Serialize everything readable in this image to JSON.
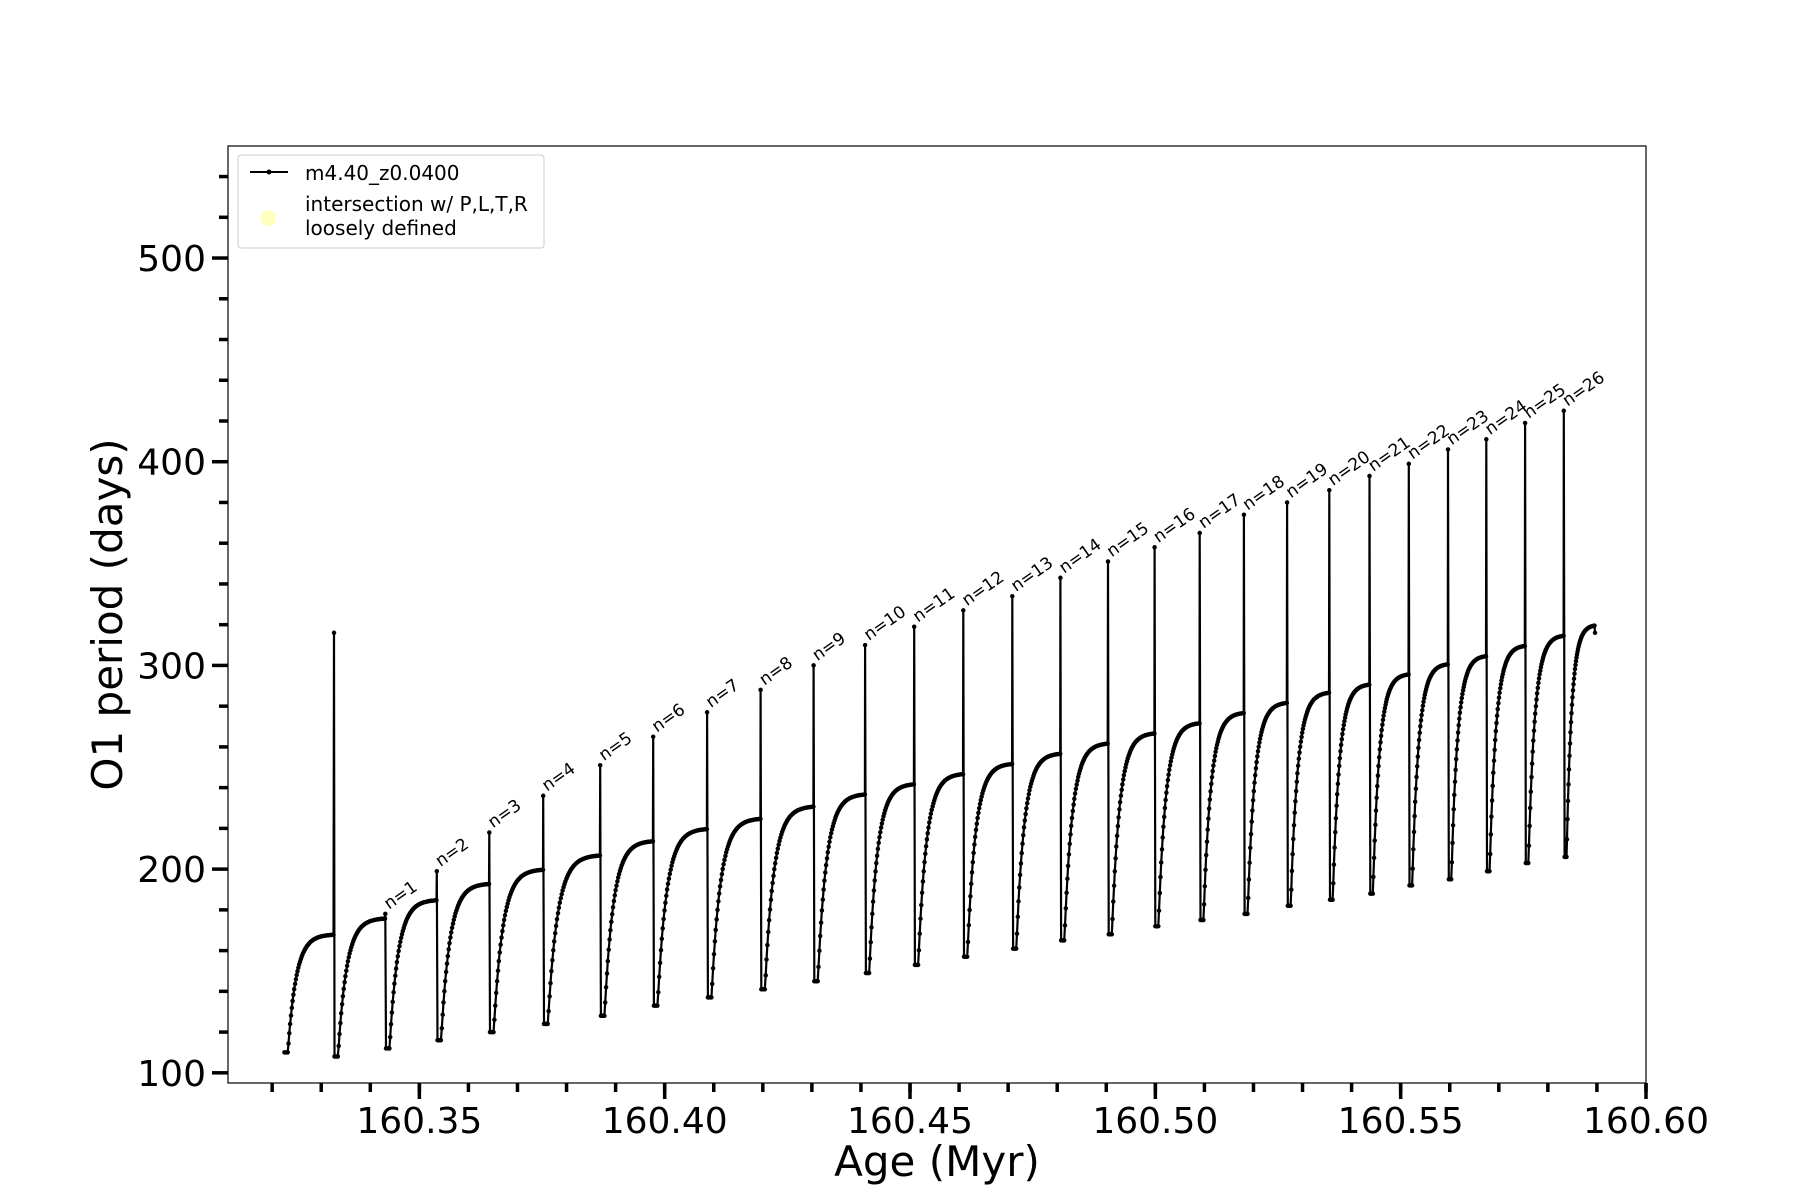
{
  "chart_data": {
    "type": "line",
    "title": "",
    "xlabel": "Age (Myr)",
    "ylabel": "O1 period (days)",
    "xlim": [
      160.311,
      160.6
    ],
    "ylim": [
      95,
      555
    ],
    "x_ticks": [
      160.35,
      160.4,
      160.45,
      160.5,
      160.55,
      160.6
    ],
    "x_tick_labels": [
      "160.35",
      "160.40",
      "160.45",
      "160.50",
      "160.55",
      "160.60"
    ],
    "y_ticks": [
      100,
      200,
      300,
      400,
      500
    ],
    "y_tick_labels": [
      "100",
      "200",
      "300",
      "400",
      "500"
    ],
    "grid": false,
    "legend": {
      "placement": "upper-left",
      "entries": [
        {
          "label": "m4.40_z0.0400",
          "color": "#000000",
          "marker": "line-with-dots"
        },
        {
          "label_lines": [
            "intersection w/ P,L,T,R",
            "loosely defined"
          ],
          "color": "#ffffc0",
          "marker": "circle"
        }
      ]
    },
    "series": [
      {
        "name": "m4.40_z0.0400",
        "color": "#000000",
        "cycles": [
          {
            "start": 160.3225,
            "min": 110,
            "end": 160.3325,
            "plateau": 168,
            "spike": null
          },
          {
            "start": 160.3327,
            "min": 108,
            "end": 160.343,
            "plateau": 176,
            "spike": 178
          },
          {
            "start": 160.3432,
            "min": 112,
            "end": 160.3535,
            "plateau": 185,
            "spike": 199
          },
          {
            "start": 160.3537,
            "min": 116,
            "end": 160.3642,
            "plateau": 193,
            "spike": 218
          },
          {
            "start": 160.3644,
            "min": 120,
            "end": 160.3752,
            "plateau": 200,
            "spike": 236
          },
          {
            "start": 160.3754,
            "min": 124,
            "end": 160.3868,
            "plateau": 207,
            "spike": 251
          },
          {
            "start": 160.387,
            "min": 128,
            "end": 160.3976,
            "plateau": 214,
            "spike": 265
          },
          {
            "start": 160.3978,
            "min": 133,
            "end": 160.4086,
            "plateau": 220,
            "spike": 277
          },
          {
            "start": 160.4088,
            "min": 137,
            "end": 160.4195,
            "plateau": 225,
            "spike": 288
          },
          {
            "start": 160.4197,
            "min": 141,
            "end": 160.4303,
            "plateau": 231,
            "spike": 300
          },
          {
            "start": 160.4305,
            "min": 145,
            "end": 160.4408,
            "plateau": 237,
            "spike": 310
          },
          {
            "start": 160.441,
            "min": 149,
            "end": 160.4508,
            "plateau": 242,
            "spike": 319
          },
          {
            "start": 160.451,
            "min": 153,
            "end": 160.4608,
            "plateau": 247,
            "spike": 327
          },
          {
            "start": 160.461,
            "min": 157,
            "end": 160.4708,
            "plateau": 252,
            "spike": 334
          },
          {
            "start": 160.471,
            "min": 161,
            "end": 160.4806,
            "plateau": 257,
            "spike": 343
          },
          {
            "start": 160.4808,
            "min": 165,
            "end": 160.4903,
            "plateau": 262,
            "spike": 351
          },
          {
            "start": 160.4905,
            "min": 168,
            "end": 160.4998,
            "plateau": 267,
            "spike": 358
          },
          {
            "start": 160.5,
            "min": 172,
            "end": 160.509,
            "plateau": 272,
            "spike": 365
          },
          {
            "start": 160.5092,
            "min": 175,
            "end": 160.518,
            "plateau": 277,
            "spike": 374
          },
          {
            "start": 160.5182,
            "min": 178,
            "end": 160.5268,
            "plateau": 282,
            "spike": 380
          },
          {
            "start": 160.527,
            "min": 182,
            "end": 160.5354,
            "plateau": 287,
            "spike": 386
          },
          {
            "start": 160.5356,
            "min": 185,
            "end": 160.5436,
            "plateau": 291,
            "spike": 393
          },
          {
            "start": 160.5438,
            "min": 188,
            "end": 160.5516,
            "plateau": 296,
            "spike": 399
          },
          {
            "start": 160.5518,
            "min": 192,
            "end": 160.5596,
            "plateau": 301,
            "spike": 406
          },
          {
            "start": 160.5598,
            "min": 195,
            "end": 160.5674,
            "plateau": 305,
            "spike": 411
          },
          {
            "start": 160.5676,
            "min": 199,
            "end": 160.5753,
            "plateau": 310,
            "spike": 419
          },
          {
            "start": 160.5755,
            "min": 203,
            "end": 160.5832,
            "plateau": 315,
            "spike": 425
          },
          {
            "start": 160.5834,
            "min": 206,
            "end": 160.5895,
            "plateau": 320,
            "spike": null
          }
        ],
        "final_value": 316
      }
    ],
    "annotations": [
      {
        "text": "n=1",
        "x": 160.343,
        "y": 178
      },
      {
        "text": "n=2",
        "x": 160.3535,
        "y": 199
      },
      {
        "text": "n=3",
        "x": 160.3642,
        "y": 218
      },
      {
        "text": "n=4",
        "x": 160.3752,
        "y": 236
      },
      {
        "text": "n=5",
        "x": 160.3868,
        "y": 251
      },
      {
        "text": "n=6",
        "x": 160.3976,
        "y": 265
      },
      {
        "text": "n=7",
        "x": 160.4086,
        "y": 277
      },
      {
        "text": "n=8",
        "x": 160.4195,
        "y": 288
      },
      {
        "text": "n=9",
        "x": 160.4303,
        "y": 300
      },
      {
        "text": "n=10",
        "x": 160.4408,
        "y": 310
      },
      {
        "text": "n=11",
        "x": 160.4508,
        "y": 319
      },
      {
        "text": "n=12",
        "x": 160.4608,
        "y": 327
      },
      {
        "text": "n=13",
        "x": 160.4708,
        "y": 334
      },
      {
        "text": "n=14",
        "x": 160.4806,
        "y": 343
      },
      {
        "text": "n=15",
        "x": 160.4903,
        "y": 351
      },
      {
        "text": "n=16",
        "x": 160.4998,
        "y": 358
      },
      {
        "text": "n=17",
        "x": 160.509,
        "y": 365
      },
      {
        "text": "n=18",
        "x": 160.518,
        "y": 374
      },
      {
        "text": "n=19",
        "x": 160.5268,
        "y": 380
      },
      {
        "text": "n=20",
        "x": 160.5354,
        "y": 386
      },
      {
        "text": "n=21",
        "x": 160.5436,
        "y": 393
      },
      {
        "text": "n=22",
        "x": 160.5516,
        "y": 399
      },
      {
        "text": "n=23",
        "x": 160.5596,
        "y": 406
      },
      {
        "text": "n=24",
        "x": 160.5674,
        "y": 411
      },
      {
        "text": "n=25",
        "x": 160.5753,
        "y": 419
      },
      {
        "text": "n=26",
        "x": 160.5832,
        "y": 425
      }
    ]
  }
}
